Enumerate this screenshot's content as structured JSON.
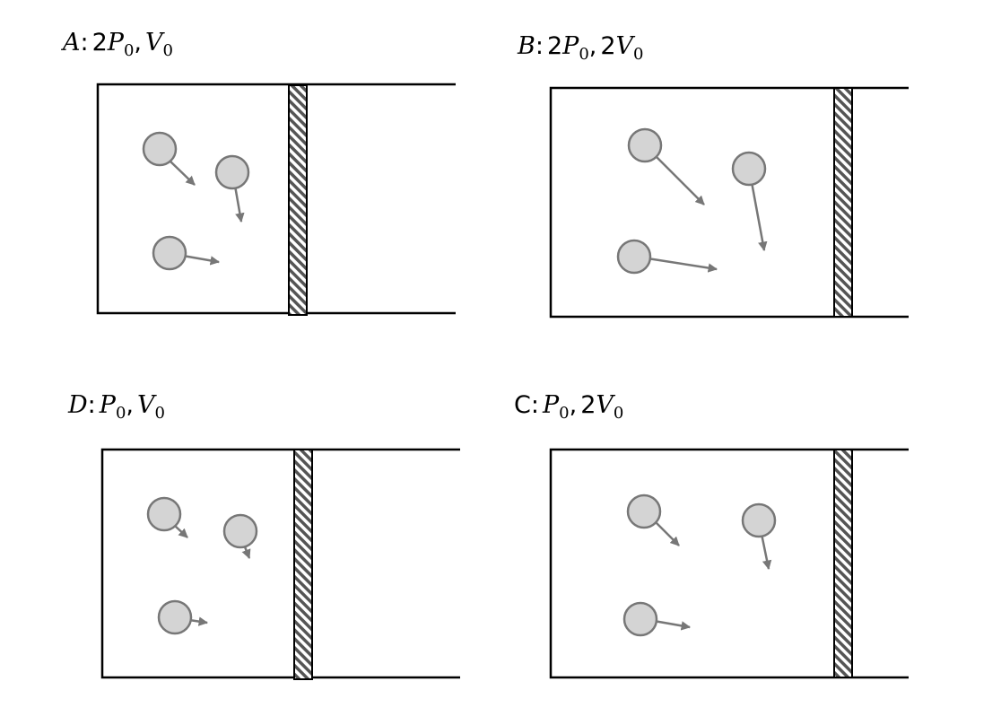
{
  "panels": [
    {
      "id": "A",
      "label": "A: 2P0, V0",
      "label_parts": {
        "letter": "A",
        "sep": ":",
        "p_coef": "2",
        "p_sym": "P",
        "p_sub": "0",
        "comma": ",",
        "v_coef": "",
        "v_sym": "V",
        "v_sub": "0"
      },
      "letter_italic": true
    },
    {
      "id": "B",
      "label": "B: 2P0, 2V0",
      "label_parts": {
        "letter": "B",
        "sep": ":",
        "p_coef": "2",
        "p_sym": "P",
        "p_sub": "0",
        "comma": ",",
        "v_coef": "2",
        "v_sym": "V",
        "v_sub": "0"
      },
      "letter_italic": true
    },
    {
      "id": "D",
      "label": "D: P0, V0",
      "label_parts": {
        "letter": "D",
        "sep": ":",
        "p_coef": "",
        "p_sym": "P",
        "p_sub": "0",
        "comma": ",",
        "v_coef": "",
        "v_sym": "V",
        "v_sub": "0"
      },
      "letter_italic": true
    },
    {
      "id": "C",
      "label": "C: P0, 2V0",
      "label_parts": {
        "letter": "C",
        "sep": ":",
        "p_coef": "",
        "p_sym": "P",
        "p_sub": "0",
        "comma": ",",
        "v_coef": "2",
        "v_sym": "V",
        "v_sub": "0"
      },
      "letter_italic": false
    }
  ],
  "colors": {
    "outline": "#000000",
    "particle_fill": "#d4d4d4",
    "particle_stroke": "#777777",
    "arrow": "#777777",
    "piston_stripe": "#555555"
  }
}
